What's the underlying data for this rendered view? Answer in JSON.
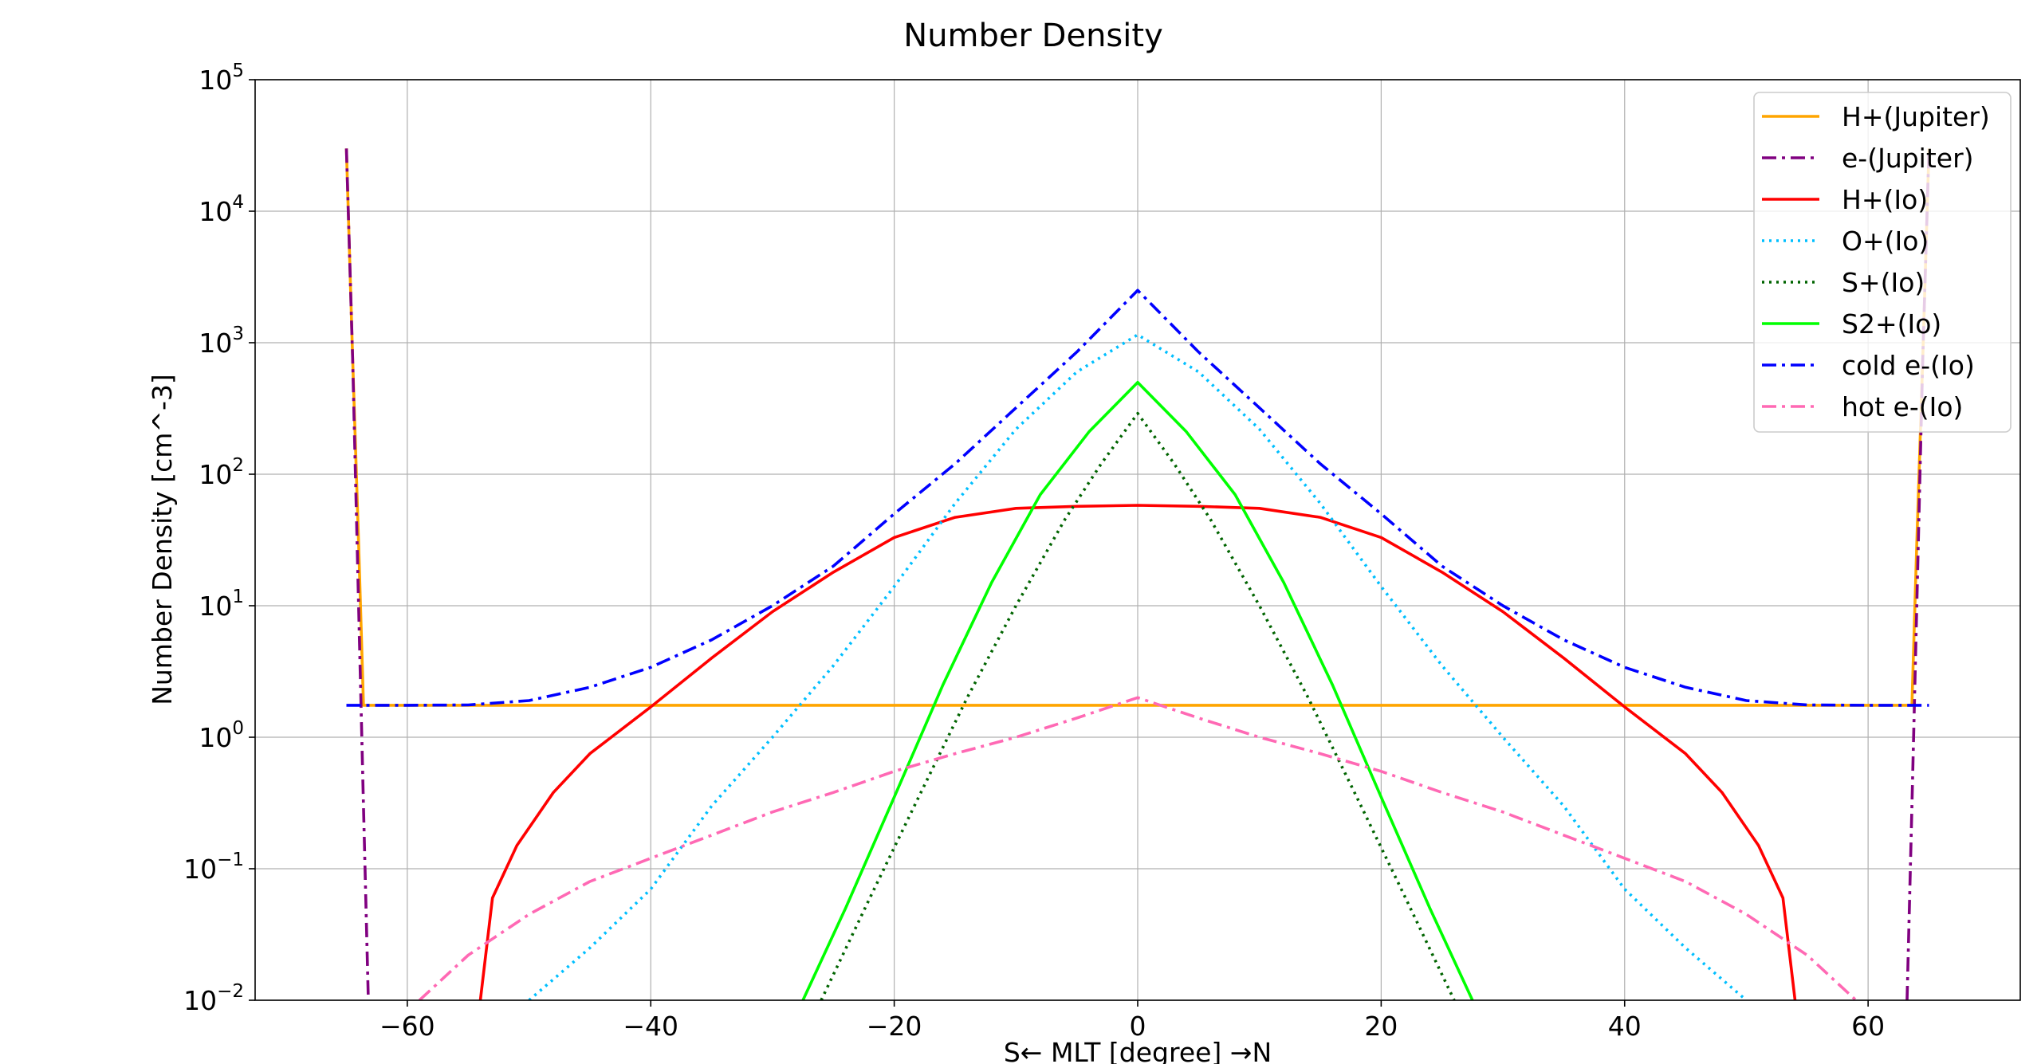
{
  "chart_data": {
    "type": "line",
    "title": "Number Density",
    "xlabel": "S← MLT [degree] →N",
    "ylabel": "Number Density [cm^-3]",
    "xlim": [
      -72.5,
      72.5
    ],
    "ylim": [
      0.01,
      100000
    ],
    "yscale": "log",
    "grid": true,
    "legend_position": "top-right",
    "x_ticks": [
      -60,
      -40,
      -20,
      0,
      20,
      40,
      60
    ],
    "x_tick_labels": [
      "−60",
      "−40",
      "−20",
      "0",
      "20",
      "40",
      "60"
    ],
    "y_ticks": [
      0.01,
      0.1,
      1,
      10,
      100,
      1000,
      10000,
      100000
    ],
    "y_tick_labels": [
      {
        "base": "10",
        "exp": "−2"
      },
      {
        "base": "10",
        "exp": "−1"
      },
      {
        "base": "10",
        "exp": "0"
      },
      {
        "base": "10",
        "exp": "1"
      },
      {
        "base": "10",
        "exp": "2"
      },
      {
        "base": "10",
        "exp": "3"
      },
      {
        "base": "10",
        "exp": "4"
      },
      {
        "base": "10",
        "exp": "5"
      }
    ],
    "series": [
      {
        "name": "H+(Jupiter)",
        "color": "#ffa500",
        "style": "solid",
        "x": [
          -65,
          -64.5,
          -64,
          -63.6,
          -63,
          -60,
          -40,
          -20,
          0,
          20,
          40,
          60,
          63,
          63.6,
          64,
          64.5,
          65
        ],
        "y": [
          30000,
          800,
          30,
          1.75,
          1.75,
          1.75,
          1.75,
          1.75,
          1.75,
          1.75,
          1.75,
          1.75,
          1.75,
          1.75,
          30,
          800,
          30000
        ]
      },
      {
        "name": "e-(Jupiter)",
        "color": "#800080",
        "style": "dashdot",
        "x": [
          -65,
          -64.5,
          -64,
          -63.6,
          -63.2
        ],
        "y": [
          30000,
          800,
          10,
          0.3,
          0.01
        ]
      },
      {
        "name": "e-(Jupiter) (north)",
        "color": "#800080",
        "style": "dashdot",
        "x": [
          63.2,
          63.6,
          64,
          64.5,
          65
        ],
        "y": [
          0.01,
          0.3,
          10,
          800,
          30000
        ]
      },
      {
        "name": "H+(Io)",
        "color": "#ff0000",
        "style": "solid",
        "x": [
          -54,
          -53,
          -51,
          -48,
          -45,
          -40,
          -35,
          -30,
          -25,
          -20,
          -15,
          -10,
          -5,
          0,
          5,
          10,
          15,
          20,
          25,
          30,
          35,
          40,
          45,
          48,
          51,
          53,
          54
        ],
        "y": [
          0.01,
          0.06,
          0.15,
          0.38,
          0.75,
          1.7,
          4.0,
          9.0,
          18,
          33,
          47,
          55,
          57,
          58,
          57,
          55,
          47,
          33,
          18,
          9.0,
          4.0,
          1.7,
          0.75,
          0.38,
          0.15,
          0.06,
          0.01
        ]
      },
      {
        "name": "O+(Io)",
        "color": "#00bfff",
        "style": "dotted",
        "x": [
          -50,
          -45,
          -40,
          -35,
          -30,
          -25,
          -20,
          -15,
          -10,
          -5,
          0,
          5,
          10,
          15,
          20,
          25,
          30,
          35,
          40,
          45,
          50
        ],
        "y": [
          0.01,
          0.025,
          0.07,
          0.3,
          1.0,
          3.5,
          14,
          60,
          220,
          600,
          1150,
          600,
          220,
          60,
          14,
          3.5,
          1.0,
          0.3,
          0.07,
          0.025,
          0.01
        ]
      },
      {
        "name": "S+(Io)",
        "color": "#006400",
        "style": "dotted",
        "x": [
          -26,
          -22,
          -18,
          -14,
          -10,
          -6,
          -3,
          0,
          3,
          6,
          10,
          14,
          18,
          22,
          26
        ],
        "y": [
          0.01,
          0.06,
          0.35,
          2.0,
          10,
          45,
          120,
          290,
          120,
          45,
          10,
          2.0,
          0.35,
          0.06,
          0.01
        ]
      },
      {
        "name": "S2+(Io)",
        "color": "#00ff00",
        "style": "solid",
        "x": [
          -27.5,
          -24,
          -20,
          -16,
          -12,
          -8,
          -4,
          0,
          4,
          8,
          12,
          16,
          20,
          24,
          27.5
        ],
        "y": [
          0.01,
          0.05,
          0.35,
          2.5,
          15,
          70,
          210,
          500,
          210,
          70,
          15,
          2.5,
          0.35,
          0.05,
          0.01
        ]
      },
      {
        "name": "cold e-(Io)",
        "color": "#0000ff",
        "style": "dashdot",
        "x": [
          -65,
          -60,
          -55,
          -50,
          -45,
          -40,
          -35,
          -30,
          -25,
          -20,
          -15,
          -10,
          -5,
          0,
          5,
          10,
          15,
          20,
          25,
          30,
          35,
          40,
          45,
          50,
          55,
          60,
          65
        ],
        "y": [
          1.75,
          1.75,
          1.76,
          1.9,
          2.4,
          3.4,
          5.5,
          10,
          20,
          50,
          120,
          320,
          850,
          2500,
          850,
          320,
          120,
          50,
          20,
          10,
          5.5,
          3.4,
          2.4,
          1.9,
          1.76,
          1.75,
          1.75
        ]
      },
      {
        "name": "hot e-(Io)",
        "color": "#ff69b4",
        "style": "dashdot",
        "x": [
          -59,
          -55,
          -50,
          -45,
          -40,
          -35,
          -30,
          -25,
          -20,
          -15,
          -10,
          -5,
          0,
          5,
          10,
          15,
          20,
          25,
          30,
          35,
          40,
          45,
          50,
          55,
          59
        ],
        "y": [
          0.01,
          0.022,
          0.045,
          0.08,
          0.12,
          0.18,
          0.27,
          0.38,
          0.55,
          0.75,
          1.0,
          1.4,
          2.0,
          1.4,
          1.0,
          0.75,
          0.55,
          0.38,
          0.27,
          0.18,
          0.12,
          0.08,
          0.045,
          0.022,
          0.01
        ]
      }
    ],
    "legend": [
      {
        "label": "H+(Jupiter)",
        "color": "#ffa500",
        "style": "solid"
      },
      {
        "label": "e-(Jupiter)",
        "color": "#800080",
        "style": "dashdot"
      },
      {
        "label": "H+(Io)",
        "color": "#ff0000",
        "style": "solid"
      },
      {
        "label": "O+(Io)",
        "color": "#00bfff",
        "style": "dotted"
      },
      {
        "label": "S+(Io)",
        "color": "#006400",
        "style": "dotted"
      },
      {
        "label": "S2+(Io)",
        "color": "#00ff00",
        "style": "solid"
      },
      {
        "label": "cold e-(Io)",
        "color": "#0000ff",
        "style": "dashdot"
      },
      {
        "label": "hot e-(Io)",
        "color": "#ff69b4",
        "style": "dashdot"
      }
    ]
  }
}
